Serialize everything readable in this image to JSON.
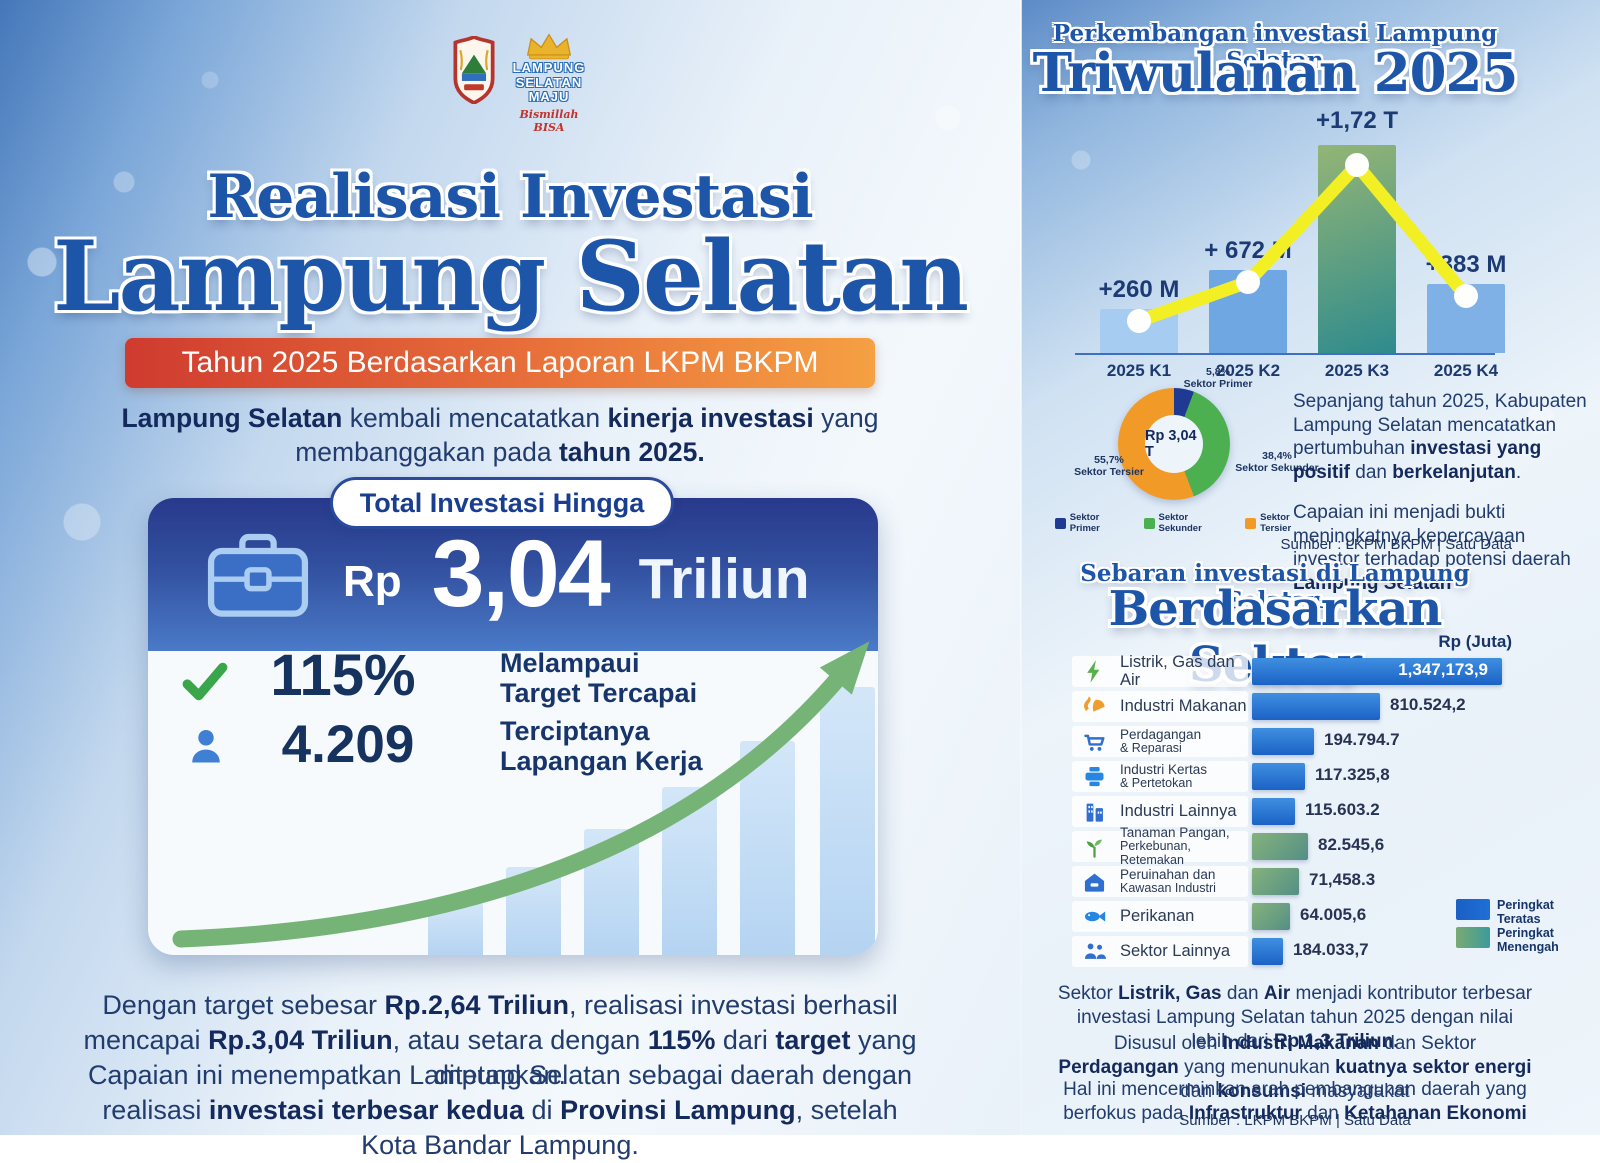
{
  "colors": {
    "accent_navy": "#1d55a8",
    "text_navy": "#1d3461",
    "banner_red": "#cf3b2f",
    "banner_orange": "#f5a043",
    "bar_blue": "#1b62c6",
    "bar_green": "#548f85",
    "line_yellow": "#f2ef25",
    "donut_primer": "#1f3a93",
    "donut_sekunder": "#4caf50",
    "donut_tersier": "#f29a27"
  },
  "logos": {
    "brand_line1": "LAMPUNG",
    "brand_line2": "SELATAN",
    "brand_line3": "MAJU",
    "brand_script": "Bismillah BISA"
  },
  "left": {
    "title_line1": "Realisasi Investasi",
    "title_line2": "Lampung Selatan",
    "banner": "Tahun 2025 Berdasarkan Laporan LKPM BKPM",
    "intro_rich": [
      {
        "t": "Lampung Selatan",
        "b": true
      },
      {
        "t": " kembali mencatatkan ",
        "b": false
      },
      {
        "t": "kinerja investasi",
        "b": true
      },
      {
        "t": " yang membanggakan pada ",
        "b": false
      },
      {
        "t": "tahun 2025.",
        "b": true
      }
    ],
    "card": {
      "pill": "Total Investasi Hingga",
      "amount_prefix": "Rp",
      "amount": "3,04",
      "amount_suffix": "Triliun",
      "stats": [
        {
          "icon": "check-icon",
          "value": "115%",
          "label_lines": [
            "Melampaui",
            "Target Tercapai"
          ]
        },
        {
          "icon": "person-icon",
          "value": "4.209",
          "label_lines": [
            "Terciptanya",
            "Lapangan Kerja"
          ]
        }
      ]
    },
    "para1_rich": [
      {
        "t": "Dengan target sebesar ",
        "b": false
      },
      {
        "t": "Rp.2,64 Triliun",
        "b": true
      },
      {
        "t": ", realisasi investasi berhasil mencapai ",
        "b": false
      },
      {
        "t": "Rp.3,04 Triliun",
        "b": true
      },
      {
        "t": ", atau setara dengan ",
        "b": false
      },
      {
        "t": "115%",
        "b": true
      },
      {
        "t": " dari ",
        "b": false
      },
      {
        "t": "target",
        "b": true
      },
      {
        "t": " yang ditetapkan.",
        "b": false
      }
    ],
    "para2_rich": [
      {
        "t": "Capaian ini menempatkan Lampung Selatan sebagai daerah dengan realisasi ",
        "b": false
      },
      {
        "t": "investasi terbesar kedua",
        "b": true
      },
      {
        "t": " di ",
        "b": false
      },
      {
        "t": "Provinsi Lampung",
        "b": true
      },
      {
        "t": ", setelah Kota Bandar Lampung.",
        "b": false
      }
    ]
  },
  "right": {
    "quarterly_subtitle": "Perkembangan investasi Lampung Selatan",
    "quarterly_title": "Triwulanan 2025",
    "summary1_rich": [
      {
        "t": "Sepanjang tahun 2025, Kabupaten Lampung Selatan mencatatkan pertumbuhan ",
        "b": false
      },
      {
        "t": "investasi yang positif",
        "b": true
      },
      {
        "t": " dan ",
        "b": false
      },
      {
        "t": "berkelanjutan",
        "b": true
      },
      {
        "t": ".",
        "b": false
      }
    ],
    "summary2_rich": [
      {
        "t": "Capaian ini menjadi bukti meningkatnya kepercayaan investor terhadap potensi daerah ",
        "b": false
      },
      {
        "t": "Lampung Selatan",
        "b": true
      }
    ],
    "source1": "Sumber : LKPM BKPM | Satu Data",
    "sector_subtitle": "Sebaran investasi di Lampung Selatan",
    "sector_title": "Berdasarkan Sektor",
    "unit": "Rp (Juta)",
    "rank_legend": [
      {
        "line1": "Peringkat",
        "line2": "Teratas"
      },
      {
        "line1": "Peringkat",
        "line2": "Menengah"
      }
    ],
    "outro1_rich": [
      {
        "t": "Sektor ",
        "b": false
      },
      {
        "t": "Listrik, Gas",
        "b": true
      },
      {
        "t": " dan ",
        "b": false
      },
      {
        "t": "Air",
        "b": true
      },
      {
        "t": " menjadi kontributor terbesar investasi Lampung Selatan tahun 2025 dengan nilai lebih dari ",
        "b": false
      },
      {
        "t": "Rp.1,3 Triliun.",
        "b": true
      }
    ],
    "outro2_rich": [
      {
        "t": "Disusul oleh ",
        "b": false
      },
      {
        "t": "Industri Makanan",
        "b": true
      },
      {
        "t": " dan Sektor ",
        "b": false
      },
      {
        "t": "Perdagangan",
        "b": true
      },
      {
        "t": " yang menunukan ",
        "b": false
      },
      {
        "t": "kuatnya sektor energi",
        "b": true
      },
      {
        "t": " dan ",
        "b": false
      },
      {
        "t": "konsumsi",
        "b": true
      },
      {
        "t": " masyarakat",
        "b": false
      }
    ],
    "outro3_rich": [
      {
        "t": "Hal ini mencerminkan arah pembangunan daerah yang berfokus pada ",
        "b": false
      },
      {
        "t": "Infrastruktur",
        "b": true
      },
      {
        "t": " dan ",
        "b": false
      },
      {
        "t": "Ketahanan Ekonomi",
        "b": true
      }
    ],
    "source2": "Sumber : LKPM BKPM | Satu Data"
  },
  "chart_data": [
    {
      "type": "bar",
      "title": "Triwulanan 2025",
      "subtitle": "Perkembangan investasi Lampung Selatan",
      "categories": [
        "2025 K1",
        "2025 K2",
        "2025 K3",
        "2025 K4"
      ],
      "values_miliar": [
        260,
        672,
        1720,
        383
      ],
      "value_labels": [
        "+260 M",
        "+ 672 M",
        "+1,72 T",
        "+383 M"
      ],
      "bar_colors": [
        "#a6cdf1",
        "#6fa7e3",
        [
          "#94b575",
          "#2e8b8d"
        ],
        "#7fb0e6"
      ],
      "overlay": "line-with-markers",
      "grid": false
    },
    {
      "type": "pie",
      "center_label": "Rp 3,04 T",
      "slices": [
        {
          "label": "Sektor Primer",
          "pct": 5.8,
          "pct_label": "5,8%",
          "color": "#1f3a93"
        },
        {
          "label": "Sektor Sekunder",
          "pct": 38.4,
          "pct_label": "38,4%",
          "color": "#4caf50"
        },
        {
          "label": "Sektor Tersier",
          "pct": 55.7,
          "pct_label": "55,7%",
          "color": "#f29a27"
        }
      ]
    },
    {
      "type": "bar",
      "orientation": "horizontal",
      "unit": "Rp (Juta)",
      "rows": [
        {
          "icon": "lightning-icon",
          "label_lines": [
            "Listrik, Gas dan Air"
          ],
          "value": 1347173.9,
          "value_label": "1,347,173,9",
          "rank": "top",
          "value_inside": true
        },
        {
          "icon": "food-icon",
          "label_lines": [
            "Industri Makanan"
          ],
          "value": 810524.2,
          "value_label": "810.524,2",
          "rank": "top",
          "value_inside": false
        },
        {
          "icon": "cart-icon",
          "label_lines": [
            "Perdagangan",
            "& Reparasi"
          ],
          "value": 194794.7,
          "value_label": "194.794.7",
          "rank": "top",
          "value_inside": false
        },
        {
          "icon": "printer-icon",
          "label_lines": [
            "Industri Kertas",
            "& Pertetokan"
          ],
          "value": 117325.8,
          "value_label": "117.325,8",
          "rank": "top",
          "value_inside": false
        },
        {
          "icon": "buildings-icon",
          "label_lines": [
            "Industri Lainnya"
          ],
          "value": 115603.2,
          "value_label": "115.603.2",
          "rank": "top",
          "value_inside": false
        },
        {
          "icon": "plant-icon",
          "label_lines": [
            "Tanaman Pangan,",
            "Perkebunan, Retemakan"
          ],
          "value": 82545.6,
          "value_label": "82.545,6",
          "rank": "middle",
          "value_inside": false
        },
        {
          "icon": "house-icon",
          "label_lines": [
            "Peruinahan dan",
            "Kawasan Industri"
          ],
          "value": 71458.3,
          "value_label": "71,458.3",
          "rank": "middle",
          "value_inside": false
        },
        {
          "icon": "fish-icon",
          "label_lines": [
            "Perikanan"
          ],
          "value": 64005.6,
          "value_label": "64.005,6",
          "rank": "middle",
          "value_inside": false
        },
        {
          "icon": "people-icon",
          "label_lines": [
            "Sektor Lainnya"
          ],
          "value": 184033.7,
          "value_label": "184.033,7",
          "rank": "top",
          "value_inside": false
        }
      ]
    }
  ]
}
